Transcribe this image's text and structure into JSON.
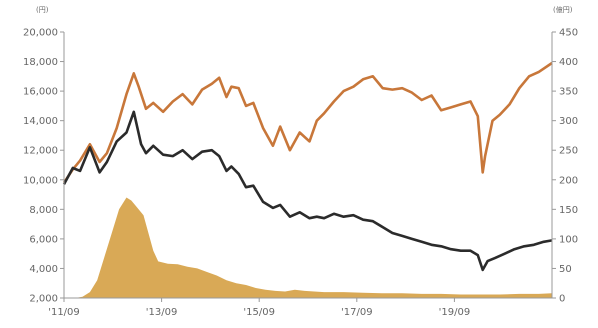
{
  "chart_data": {
    "type": "line",
    "title": "",
    "y_left": {
      "label": "(円)",
      "ticks": [
        2000,
        4000,
        6000,
        8000,
        10000,
        12000,
        14000,
        16000,
        18000,
        20000
      ],
      "tick_labels": [
        "2,000",
        "4,000",
        "6,000",
        "8,000",
        "10,000",
        "12,000",
        "14,000",
        "16,000",
        "18,000",
        "20,000"
      ],
      "range": [
        2000,
        20000
      ]
    },
    "y_right": {
      "label": "(億円)",
      "ticks": [
        0,
        50,
        100,
        150,
        200,
        250,
        300,
        350,
        400,
        450
      ],
      "tick_labels": [
        "0",
        "50",
        "100",
        "150",
        "200",
        "250",
        "300",
        "350",
        "400",
        "450"
      ],
      "range": [
        0,
        450
      ]
    },
    "x_axis": {
      "tick_labels": [
        "'11/09",
        "'13/09",
        "'15/09",
        "'17/09",
        "'19/09"
      ],
      "tick_positions": [
        2011.67,
        2013.67,
        2015.67,
        2017.67,
        2019.67
      ],
      "range": [
        2011.67,
        2021.67
      ]
    },
    "series": [
      {
        "axis": "left",
        "color": "#c8773a",
        "points": [
          [
            2011.67,
            9800
          ],
          [
            2011.85,
            10700
          ],
          [
            2012.0,
            11300
          ],
          [
            2012.2,
            12400
          ],
          [
            2012.4,
            11200
          ],
          [
            2012.55,
            11800
          ],
          [
            2012.75,
            13500
          ],
          [
            2012.95,
            15800
          ],
          [
            2013.1,
            17200
          ],
          [
            2013.2,
            16300
          ],
          [
            2013.35,
            14800
          ],
          [
            2013.5,
            15200
          ],
          [
            2013.7,
            14600
          ],
          [
            2013.9,
            15300
          ],
          [
            2014.1,
            15800
          ],
          [
            2014.3,
            15100
          ],
          [
            2014.5,
            16100
          ],
          [
            2014.7,
            16500
          ],
          [
            2014.85,
            16900
          ],
          [
            2015.0,
            15600
          ],
          [
            2015.1,
            16300
          ],
          [
            2015.25,
            16200
          ],
          [
            2015.4,
            15000
          ],
          [
            2015.55,
            15200
          ],
          [
            2015.75,
            13500
          ],
          [
            2015.95,
            12300
          ],
          [
            2016.1,
            13600
          ],
          [
            2016.3,
            12000
          ],
          [
            2016.5,
            13200
          ],
          [
            2016.7,
            12600
          ],
          [
            2016.85,
            14000
          ],
          [
            2017.0,
            14500
          ],
          [
            2017.2,
            15300
          ],
          [
            2017.4,
            16000
          ],
          [
            2017.6,
            16300
          ],
          [
            2017.8,
            16800
          ],
          [
            2018.0,
            17000
          ],
          [
            2018.2,
            16200
          ],
          [
            2018.4,
            16100
          ],
          [
            2018.6,
            16200
          ],
          [
            2018.8,
            15900
          ],
          [
            2019.0,
            15400
          ],
          [
            2019.2,
            15700
          ],
          [
            2019.4,
            14700
          ],
          [
            2019.6,
            14900
          ],
          [
            2019.8,
            15100
          ],
          [
            2020.0,
            15300
          ],
          [
            2020.15,
            14300
          ],
          [
            2020.25,
            10500
          ],
          [
            2020.3,
            11600
          ],
          [
            2020.45,
            14000
          ],
          [
            2020.6,
            14400
          ],
          [
            2020.8,
            15100
          ],
          [
            2021.0,
            16200
          ],
          [
            2021.2,
            17000
          ],
          [
            2021.4,
            17300
          ],
          [
            2021.67,
            17900
          ]
        ]
      },
      {
        "axis": "left",
        "color": "#2b2b2b",
        "points": [
          [
            2011.67,
            9700
          ],
          [
            2011.85,
            10800
          ],
          [
            2012.0,
            10600
          ],
          [
            2012.2,
            12200
          ],
          [
            2012.4,
            10500
          ],
          [
            2012.55,
            11200
          ],
          [
            2012.75,
            12600
          ],
          [
            2012.95,
            13200
          ],
          [
            2013.1,
            14600
          ],
          [
            2013.25,
            12400
          ],
          [
            2013.35,
            11800
          ],
          [
            2013.5,
            12300
          ],
          [
            2013.7,
            11700
          ],
          [
            2013.9,
            11600
          ],
          [
            2014.1,
            12000
          ],
          [
            2014.3,
            11400
          ],
          [
            2014.5,
            11900
          ],
          [
            2014.7,
            12000
          ],
          [
            2014.85,
            11600
          ],
          [
            2015.0,
            10600
          ],
          [
            2015.1,
            10900
          ],
          [
            2015.25,
            10400
          ],
          [
            2015.4,
            9500
          ],
          [
            2015.55,
            9600
          ],
          [
            2015.75,
            8500
          ],
          [
            2015.95,
            8100
          ],
          [
            2016.1,
            8300
          ],
          [
            2016.3,
            7500
          ],
          [
            2016.5,
            7800
          ],
          [
            2016.7,
            7400
          ],
          [
            2016.85,
            7500
          ],
          [
            2017.0,
            7400
          ],
          [
            2017.2,
            7700
          ],
          [
            2017.4,
            7500
          ],
          [
            2017.6,
            7600
          ],
          [
            2017.8,
            7300
          ],
          [
            2018.0,
            7200
          ],
          [
            2018.2,
            6800
          ],
          [
            2018.4,
            6400
          ],
          [
            2018.6,
            6200
          ],
          [
            2018.8,
            6000
          ],
          [
            2019.0,
            5800
          ],
          [
            2019.2,
            5600
          ],
          [
            2019.4,
            5500
          ],
          [
            2019.6,
            5300
          ],
          [
            2019.8,
            5200
          ],
          [
            2020.0,
            5200
          ],
          [
            2020.15,
            4900
          ],
          [
            2020.25,
            3900
          ],
          [
            2020.35,
            4500
          ],
          [
            2020.5,
            4700
          ],
          [
            2020.7,
            5000
          ],
          [
            2020.9,
            5300
          ],
          [
            2021.1,
            5500
          ],
          [
            2021.3,
            5600
          ],
          [
            2021.5,
            5800
          ],
          [
            2021.67,
            5900
          ]
        ]
      },
      {
        "axis": "right",
        "type": "area",
        "color": "#d9a956",
        "points": [
          [
            2011.67,
            0
          ],
          [
            2011.9,
            0
          ],
          [
            2012.05,
            2
          ],
          [
            2012.2,
            10
          ],
          [
            2012.35,
            30
          ],
          [
            2012.5,
            70
          ],
          [
            2012.65,
            110
          ],
          [
            2012.8,
            150
          ],
          [
            2012.95,
            170
          ],
          [
            2013.05,
            165
          ],
          [
            2013.15,
            155
          ],
          [
            2013.3,
            140
          ],
          [
            2013.4,
            110
          ],
          [
            2013.5,
            80
          ],
          [
            2013.6,
            62
          ],
          [
            2013.8,
            58
          ],
          [
            2014.0,
            57
          ],
          [
            2014.2,
            53
          ],
          [
            2014.4,
            50
          ],
          [
            2014.6,
            44
          ],
          [
            2014.8,
            38
          ],
          [
            2015.0,
            30
          ],
          [
            2015.2,
            25
          ],
          [
            2015.4,
            22
          ],
          [
            2015.6,
            17
          ],
          [
            2015.8,
            14
          ],
          [
            2016.0,
            12
          ],
          [
            2016.2,
            11
          ],
          [
            2016.4,
            14
          ],
          [
            2016.6,
            12
          ],
          [
            2016.8,
            11
          ],
          [
            2017.0,
            10
          ],
          [
            2017.4,
            10
          ],
          [
            2017.8,
            9
          ],
          [
            2018.2,
            8
          ],
          [
            2018.6,
            8
          ],
          [
            2019.0,
            7
          ],
          [
            2019.4,
            7
          ],
          [
            2019.8,
            6
          ],
          [
            2020.2,
            6
          ],
          [
            2020.6,
            6
          ],
          [
            2021.0,
            7
          ],
          [
            2021.4,
            7
          ],
          [
            2021.67,
            8
          ]
        ]
      }
    ],
    "grid": false,
    "legend": "none"
  }
}
